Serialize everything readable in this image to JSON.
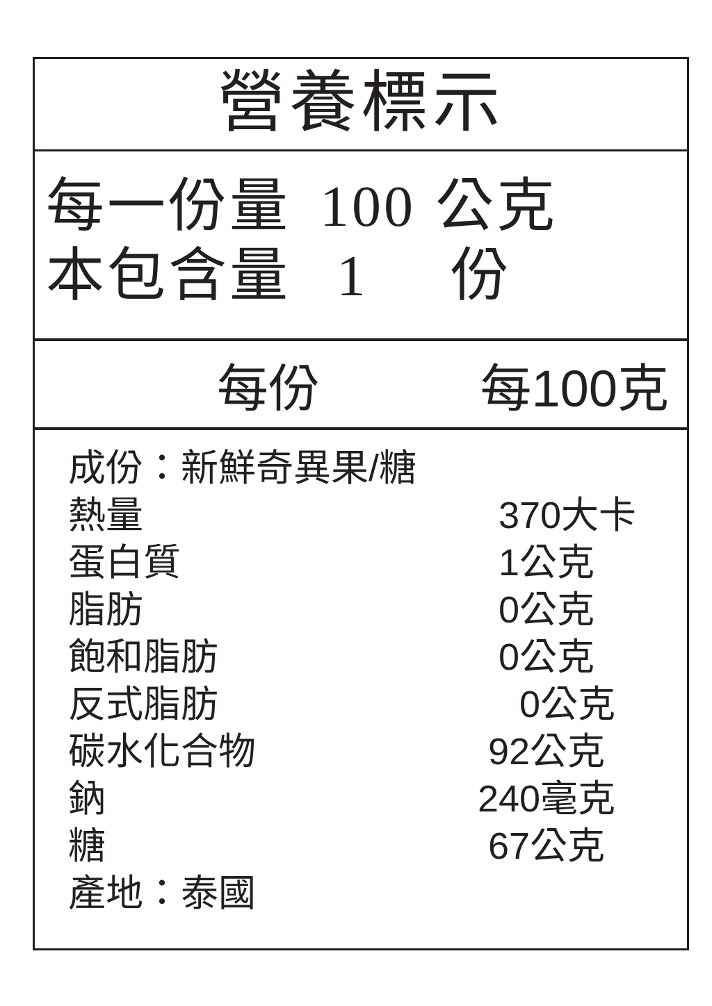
{
  "title": "營養標示",
  "serving": {
    "size_label": "每一份量",
    "size_value": "100",
    "size_unit": "公克",
    "count_label": "本包含量",
    "count_value": "1",
    "count_unit": "份"
  },
  "columns": {
    "per_serving": "每份",
    "per_100g": "每100克"
  },
  "ingredients": {
    "label": "成份：",
    "value": "新鮮奇異果/糖"
  },
  "nutrients": [
    {
      "name": "熱量",
      "value": "370大卡"
    },
    {
      "name": "蛋白質",
      "value": "1公克"
    },
    {
      "name": "脂肪",
      "value": "0公克"
    },
    {
      "name": "飽和脂肪",
      "value": "0公克"
    },
    {
      "name": "反式脂肪",
      "value": "0公克"
    },
    {
      "name": "碳水化合物",
      "value": "92公克"
    },
    {
      "name": "鈉",
      "value": "240毫克"
    },
    {
      "name": "糖",
      "value": "67公克"
    }
  ],
  "origin": {
    "label": "產地：",
    "value": "泰國"
  },
  "colors": {
    "text": "#231f20",
    "border": "#231f20",
    "background": "#ffffff"
  }
}
